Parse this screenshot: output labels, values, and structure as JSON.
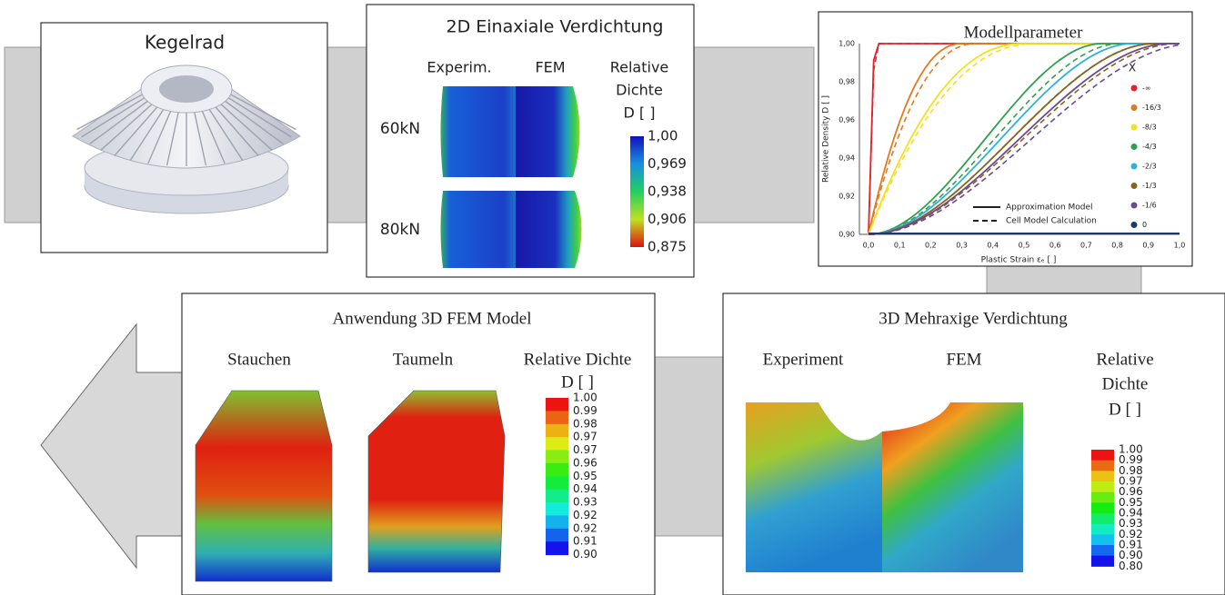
{
  "kegelrad": {
    "title": "Kegelrad"
  },
  "verdichtung_2d": {
    "title": "2D Einaxiale Verdichtung",
    "columns": [
      "Experim.",
      "FEM"
    ],
    "legend_title": [
      "Relative",
      "Dichte",
      "D [ ]"
    ],
    "rows": [
      "60kN",
      "80kN"
    ],
    "scale": [
      "1,00",
      "0,969",
      "0,938",
      "0,906",
      "0,875"
    ]
  },
  "modellparameter": {
    "title": "Modellparameter",
    "y_label": "Relative Density D [ ]",
    "x_label": "Plastic Strain εₑ [ ]",
    "xticks": [
      "0,0",
      "0,1",
      "0,2",
      "0,3",
      "0,4",
      "0,5",
      "0,6",
      "0,7",
      "0,8",
      "0,9",
      "1,0"
    ],
    "yticks": [
      "1,00",
      "0,98",
      "0,96",
      "0,94",
      "0,92",
      "0,90"
    ],
    "legend_title": "X",
    "legend": [
      "-∞",
      "-16/3",
      "-8/3",
      "-4/3",
      "-2/3",
      "-1/3",
      "-1/6",
      "0"
    ],
    "colors": [
      "#e8202a",
      "#e07a20",
      "#f4e020",
      "#30a050",
      "#30b0e0",
      "#8a6418",
      "#6a4a90",
      "#1a3a6a"
    ],
    "line_styles": [
      "Approximation Model",
      "Cell Model Calculation"
    ]
  },
  "anwendung": {
    "title": "Anwendung 3D FEM Model",
    "columns": [
      "Stauchen",
      "Taumeln"
    ],
    "legend_title": [
      "Relative Dichte",
      "D [ ]"
    ],
    "scale": [
      "1.00",
      "0.99",
      "0.98",
      "0.97",
      "0.97",
      "0.96",
      "0.95",
      "0.94",
      "0.93",
      "0.92",
      "0.92",
      "0.91",
      "0.90"
    ]
  },
  "mehraxig_3d": {
    "title": "3D Mehraxige Verdichtung",
    "columns": [
      "Experiment",
      "FEM"
    ],
    "legend_title": [
      "Relative",
      "Dichte",
      "D [ ]"
    ],
    "scale": [
      "1.00",
      "0.99",
      "0.98",
      "0.97",
      "0.96",
      "0.95",
      "0.94",
      "0.93",
      "0.92",
      "0.91",
      "0.90",
      "0.80"
    ]
  }
}
